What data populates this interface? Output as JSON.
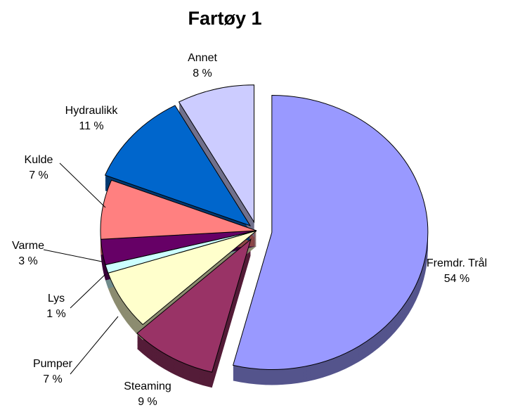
{
  "chart_data": {
    "type": "pie",
    "title": "Fartøy 1",
    "categories": [
      "Fremdr. Trål",
      "Steaming",
      "Pumper",
      "Lys",
      "Varme",
      "Kulde",
      "Hydraulikk",
      "Annet"
    ],
    "values": [
      54,
      9,
      7,
      1,
      3,
      7,
      11,
      8
    ],
    "value_labels": [
      "54 %",
      "9 %",
      "7 %",
      "1 %",
      "3 %",
      "7 %",
      "11 %",
      "8 %"
    ],
    "colors": [
      "#9999ff",
      "#993366",
      "#ffffcc",
      "#ccffff",
      "#660066",
      "#ff8080",
      "#0066cc",
      "#ccccff"
    ]
  }
}
